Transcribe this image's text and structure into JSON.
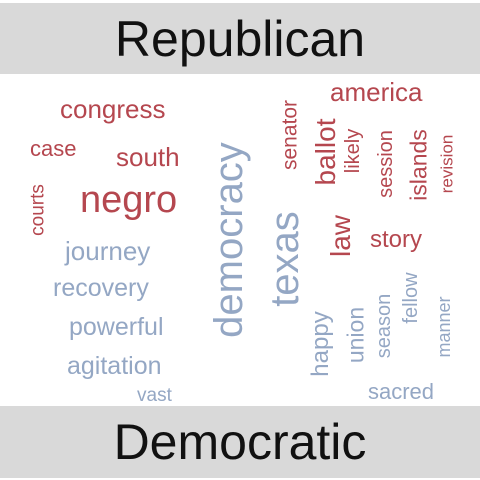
{
  "top_label": "Republican",
  "bottom_label": "Democratic",
  "colors": {
    "republican": "#b5474f",
    "democratic": "#94a7c4"
  },
  "republican_words": [
    "congress",
    "america",
    "case",
    "south",
    "negro",
    "courts",
    "senator",
    "ballot",
    "likely",
    "session",
    "islands",
    "revision",
    "law",
    "story"
  ],
  "democratic_words": [
    "journey",
    "recovery",
    "powerful",
    "agitation",
    "vast",
    "democracy",
    "texas",
    "happy",
    "union",
    "season",
    "fellow",
    "manner",
    "sacred"
  ]
}
